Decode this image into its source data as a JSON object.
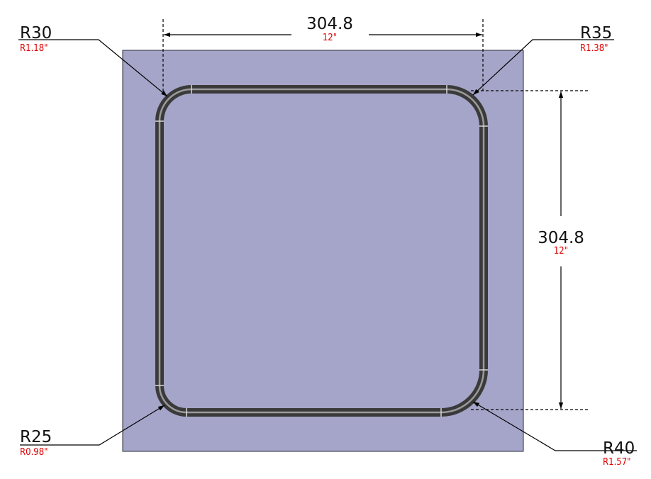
{
  "colors": {
    "plate": "#a5a5c9",
    "plate_edge": "#2a2a3a",
    "tube": "#3c3c3c",
    "tube_highlight": "#9a9a9a",
    "dimension_line": "#000000",
    "imperial_text": "#e00000"
  },
  "dimensions": {
    "width": {
      "metric": "304.8",
      "imperial": "12\""
    },
    "height": {
      "metric": "304.8",
      "imperial": "12\""
    }
  },
  "radii": {
    "top_left": {
      "metric": "R30",
      "imperial": "R1.18\""
    },
    "top_right": {
      "metric": "R35",
      "imperial": "R1.38\""
    },
    "bottom_left": {
      "metric": "R25",
      "imperial": "R0.98\""
    },
    "bottom_right": {
      "metric": "R40",
      "imperial": "R1.57\""
    }
  }
}
